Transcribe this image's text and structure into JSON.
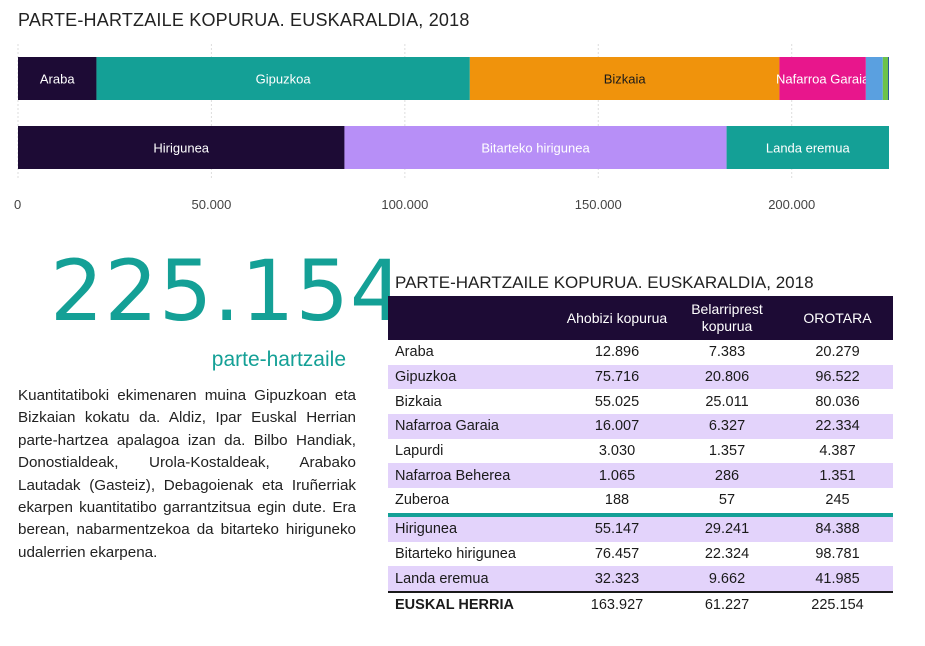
{
  "chart_data": {
    "type": "bar",
    "orientation": "horizontal-stacked",
    "title": "PARTE-HARTZAILE KOPURUA. EUSKARALDIA, 2018",
    "xlim": [
      0,
      225154
    ],
    "x_ticks": [
      0,
      50000,
      100000,
      150000,
      200000
    ],
    "x_tick_labels": [
      "0",
      "50.000",
      "100.000",
      "150.000",
      "200.000"
    ],
    "bars": [
      {
        "segments": [
          {
            "name": "Araba",
            "value": 20279,
            "color": "#1d0b35",
            "text_color": "#ffffff"
          },
          {
            "name": "Gipuzkoa",
            "value": 96522,
            "color": "#14a096",
            "text_color": "#ffffff"
          },
          {
            "name": "Bizkaia",
            "value": 80036,
            "color": "#f0930c",
            "text_color": "#1a1a1a"
          },
          {
            "name": "Nafarroa Garaia",
            "value": 22334,
            "color": "#e8168c",
            "text_color": "#ffffff"
          },
          {
            "name": "",
            "value": 4387,
            "color": "#5aa0e0",
            "text_color": "#ffffff"
          },
          {
            "name": "",
            "value": 1351,
            "color": "#6cc24a",
            "text_color": "#ffffff"
          },
          {
            "name": "",
            "value": 245,
            "color": "#1f4e9a",
            "text_color": "#ffffff"
          }
        ]
      },
      {
        "segments": [
          {
            "name": "Hirigunea",
            "value": 84388,
            "color": "#1d0b35",
            "text_color": "#ffffff"
          },
          {
            "name": "Bitarteko hirigunea",
            "value": 98781,
            "color": "#b78ff7",
            "text_color": "#ffffff"
          },
          {
            "name": "Landa eremua",
            "value": 41985,
            "color": "#14a096",
            "text_color": "#ffffff"
          }
        ]
      }
    ]
  },
  "big_number": "225.154",
  "big_caption": "parte-hartzaile",
  "description": "Kuantitatiboki ekimenaren muina Gipuzkoan eta Bizkaian kokatu da. Aldiz, Ipar Euskal Herrian parte-hartzea apalagoa izan da. Bilbo Handiak, Donostialdeak, Urola-Kostaldeak, Arabako Lautadak (Gasteiz), Debagoienak eta Iruñerriak ekarpen kuantitatibo garrantzitsua egin dute. Era berean, nabarmentzekoa da bitarteko hiriguneko udalerrien ekarpena.",
  "table": {
    "title": "PARTE-HARTZAILE KOPURUA. EUSKARALDIA, 2018",
    "headers": [
      "",
      "Ahobizi kopurua",
      "Belarriprest kopurua",
      "OROTARA"
    ],
    "rows": [
      {
        "label": "Araba",
        "values": [
          "12.896",
          "7.383",
          "20.279"
        ],
        "shade": false,
        "sep": false,
        "total": false
      },
      {
        "label": "Gipuzkoa",
        "values": [
          "75.716",
          "20.806",
          "96.522"
        ],
        "shade": true,
        "sep": false,
        "total": false
      },
      {
        "label": "Bizkaia",
        "values": [
          "55.025",
          "25.011",
          "80.036"
        ],
        "shade": false,
        "sep": false,
        "total": false
      },
      {
        "label": "Nafarroa Garaia",
        "values": [
          "16.007",
          "6.327",
          "22.334"
        ],
        "shade": true,
        "sep": false,
        "total": false
      },
      {
        "label": "Lapurdi",
        "values": [
          "3.030",
          "1.357",
          "4.387"
        ],
        "shade": false,
        "sep": false,
        "total": false
      },
      {
        "label": "Nafarroa Beherea",
        "values": [
          "1.065",
          "286",
          "1.351"
        ],
        "shade": true,
        "sep": false,
        "total": false
      },
      {
        "label": "Zuberoa",
        "values": [
          "188",
          "57",
          "245"
        ],
        "shade": false,
        "sep": false,
        "total": false
      },
      {
        "label": "Hirigunea",
        "values": [
          "55.147",
          "29.241",
          "84.388"
        ],
        "shade": true,
        "sep": true,
        "total": false
      },
      {
        "label": "Bitarteko hirigunea",
        "values": [
          "76.457",
          "22.324",
          "98.781"
        ],
        "shade": false,
        "sep": false,
        "total": false
      },
      {
        "label": "Landa eremua",
        "values": [
          "32.323",
          "9.662",
          "41.985"
        ],
        "shade": true,
        "sep": false,
        "total": false
      },
      {
        "label": "EUSKAL HERRIA",
        "values": [
          "163.927",
          "61.227",
          "225.154"
        ],
        "shade": false,
        "sep": false,
        "total": true
      }
    ]
  }
}
